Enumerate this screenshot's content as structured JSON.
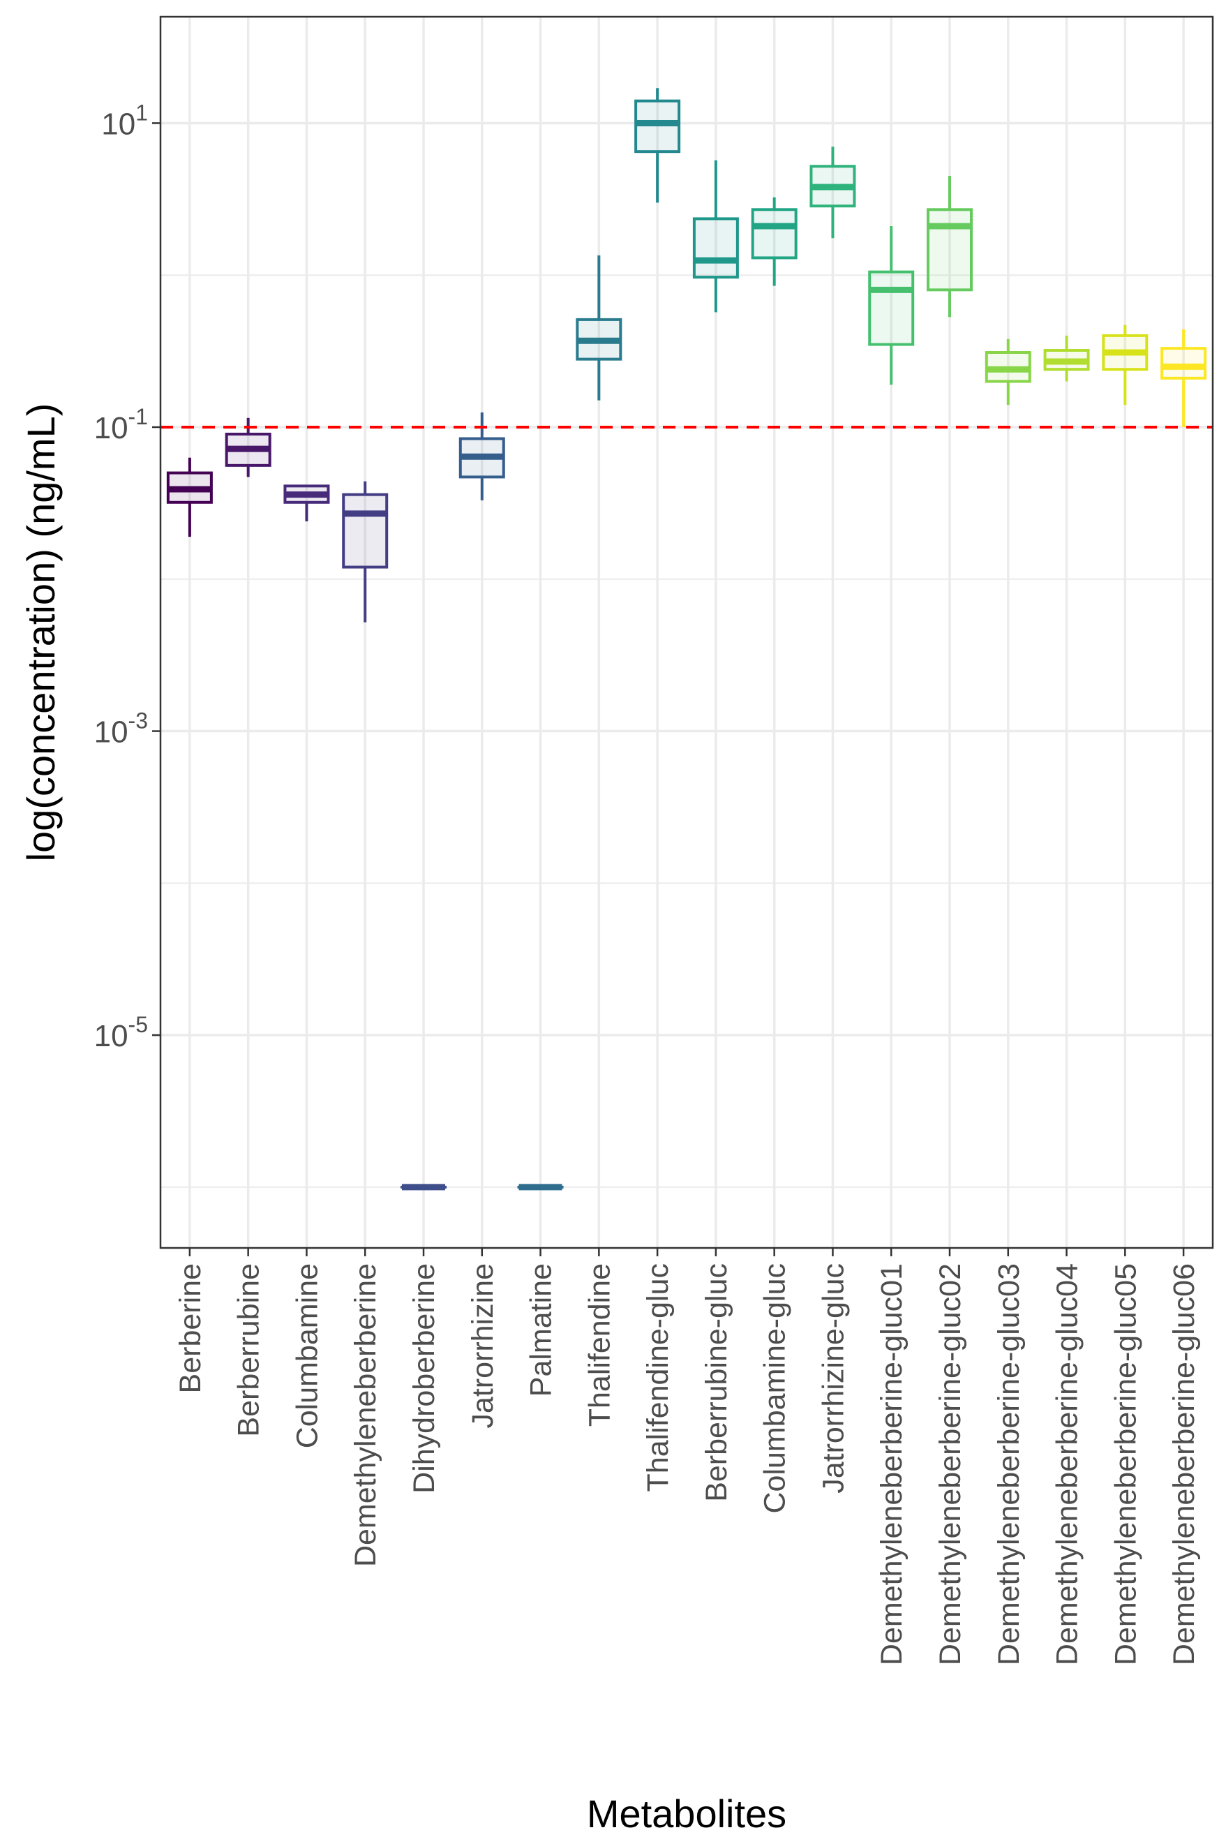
{
  "chart_data": {
    "type": "box",
    "xlabel": "Metabolites",
    "ylabel": "log(concentration) (ng/mL)",
    "yscale": "log10",
    "ylim_log10": [
      -6.4,
      1.7
    ],
    "y_ticks": [
      {
        "base": "10",
        "exp": "1",
        "log10": 1
      },
      {
        "base": "10",
        "exp": "-1",
        "log10": -1
      },
      {
        "base": "10",
        "exp": "-3",
        "log10": -3
      },
      {
        "base": "10",
        "exp": "-5",
        "log10": -5
      }
    ],
    "y_minor_log10": [
      0,
      -2,
      -4,
      -6
    ],
    "reference_line": {
      "value": 0.1,
      "color": "#ff0000",
      "style": "dashed"
    },
    "categories": [
      "Berberine",
      "Berberrubine",
      "Columbamine",
      "Demethyleneberberine",
      "Dihydroberberine",
      "Jatrorrhizine",
      "Palmatine",
      "Thalifendine",
      "Thalifendine-gluc",
      "Berberrubine-gluc",
      "Columbamine-gluc",
      "Jatrorrhizine-gluc",
      "Demethyleneberberine-gluc01",
      "Demethyleneberberine-gluc02",
      "Demethyleneberberine-gluc03",
      "Demethyleneberberine-gluc04",
      "Demethyleneberberine-gluc05",
      "Demethyleneberberine-gluc06"
    ],
    "colors": [
      "#440154",
      "#481769",
      "#472A7A",
      "#433D84",
      "#3D4E8A",
      "#355E8D",
      "#2E6D8E",
      "#297B8E",
      "#23898E",
      "#1F978B",
      "#21A585",
      "#2EB37C",
      "#46C06F",
      "#65CB5E",
      "#89D548",
      "#B0DD2F",
      "#D8E219",
      "#FDE725"
    ],
    "boxes": [
      {
        "min": 0.019,
        "q1": 0.032,
        "median": 0.039,
        "q3": 0.05,
        "max": 0.063
      },
      {
        "min": 0.047,
        "q1": 0.056,
        "median": 0.072,
        "q3": 0.09,
        "max": 0.115
      },
      {
        "min": 0.024,
        "q1": 0.032,
        "median": 0.036,
        "q3": 0.041,
        "max": 0.041
      },
      {
        "min": 0.0052,
        "q1": 0.012,
        "median": 0.027,
        "q3": 0.036,
        "max": 0.044
      },
      {
        "min": 1e-06,
        "q1": 1e-06,
        "median": 1e-06,
        "q3": 1e-06,
        "max": 1e-06
      },
      {
        "min": 0.033,
        "q1": 0.047,
        "median": 0.064,
        "q3": 0.084,
        "max": 0.125
      },
      {
        "min": 1e-06,
        "q1": 1e-06,
        "median": 1e-06,
        "q3": 1e-06,
        "max": 1e-06
      },
      {
        "min": 0.15,
        "q1": 0.28,
        "median": 0.37,
        "q3": 0.51,
        "max": 1.35
      },
      {
        "min": 3.0,
        "q1": 6.5,
        "median": 10.0,
        "q3": 14.0,
        "max": 17.0
      },
      {
        "min": 0.57,
        "q1": 0.97,
        "median": 1.25,
        "q3": 2.35,
        "max": 5.7
      },
      {
        "min": 0.85,
        "q1": 1.3,
        "median": 2.1,
        "q3": 2.7,
        "max": 3.25
      },
      {
        "min": 1.75,
        "q1": 2.85,
        "median": 3.8,
        "q3": 5.2,
        "max": 7.0
      },
      {
        "min": 0.19,
        "q1": 0.35,
        "median": 0.8,
        "q3": 1.05,
        "max": 2.1
      },
      {
        "min": 0.53,
        "q1": 0.8,
        "median": 2.1,
        "q3": 2.7,
        "max": 4.5
      },
      {
        "min": 0.14,
        "q1": 0.2,
        "median": 0.24,
        "q3": 0.31,
        "max": 0.38
      },
      {
        "min": 0.2,
        "q1": 0.24,
        "median": 0.27,
        "q3": 0.32,
        "max": 0.4
      },
      {
        "min": 0.14,
        "q1": 0.24,
        "median": 0.31,
        "q3": 0.4,
        "max": 0.47
      },
      {
        "min": 0.1,
        "q1": 0.21,
        "median": 0.25,
        "q3": 0.33,
        "max": 0.44
      }
    ]
  }
}
